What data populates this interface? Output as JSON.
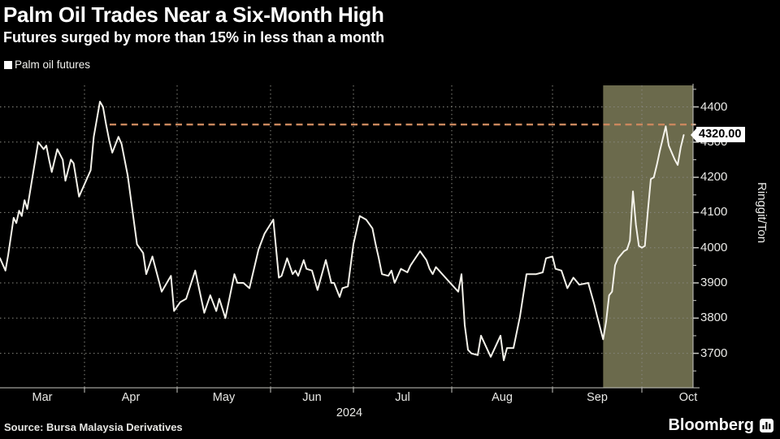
{
  "header": {
    "title": "Palm Oil Trades Near a Six-Month High",
    "subtitle": "Futures surged by more than 15% in less than a month"
  },
  "legend": {
    "series_label": "Palm oil futures",
    "marker_color": "#ffffff"
  },
  "footer": {
    "source": "Source: Bursa Malaysia Derivatives",
    "brand": "Bloomberg"
  },
  "colors": {
    "background": "#000000",
    "line": "#f4f2ea",
    "highlight_band": "#6b6a4c",
    "reference_dash": "#c9875d",
    "grid": "#87877f",
    "axis": "#c7c7c2",
    "text": "#e9e9e6"
  },
  "chart_data": {
    "type": "line",
    "title": "Palm oil futures",
    "xlabel": "",
    "ylabel": "Ringgit/Ton",
    "x_range": [
      "2024-03-01",
      "2024-10-15"
    ],
    "ylim": [
      3620,
      4460
    ],
    "y_ticks": [
      3700,
      3800,
      3900,
      4000,
      4100,
      4200,
      4300,
      4400
    ],
    "y_minor_ticks": [
      3650,
      3750,
      3850,
      3950,
      4050,
      4150,
      4250,
      4350,
      4450
    ],
    "x_tick_labels": [
      "Mar",
      "Apr",
      "May",
      "Jun",
      "Jul",
      "Aug",
      "Sep",
      "Oct"
    ],
    "year_label": "2024",
    "grid": true,
    "legend_position": "top-left",
    "last_price": {
      "value": 4320,
      "label": "4320.00"
    },
    "reference_line": {
      "value": 4350,
      "style": "dashed",
      "color": "#c9875d"
    },
    "highlight_region": {
      "start": "2024-09-18",
      "end": "2024-10-15",
      "color": "#6b6a4c"
    },
    "line_color": "#f4f2ea",
    "series": [
      {
        "name": "Palm oil futures",
        "points": [
          [
            "2024-03-01",
            3970
          ],
          [
            "2024-03-03",
            3935
          ],
          [
            "2024-03-04",
            3980
          ],
          [
            "2024-03-06",
            4085
          ],
          [
            "2024-03-07",
            4070
          ],
          [
            "2024-03-08",
            4105
          ],
          [
            "2024-03-09",
            4090
          ],
          [
            "2024-03-10",
            4135
          ],
          [
            "2024-03-11",
            4110
          ],
          [
            "2024-03-15",
            4300
          ],
          [
            "2024-03-17",
            4280
          ],
          [
            "2024-03-18",
            4290
          ],
          [
            "2024-03-19",
            4250
          ],
          [
            "2024-03-20",
            4215
          ],
          [
            "2024-03-22",
            4280
          ],
          [
            "2024-03-24",
            4250
          ],
          [
            "2024-03-25",
            4190
          ],
          [
            "2024-03-27",
            4250
          ],
          [
            "2024-03-28",
            4240
          ],
          [
            "2024-03-30",
            4145
          ],
          [
            "2024-04-03",
            4220
          ],
          [
            "2024-04-04",
            4315
          ],
          [
            "2024-04-06",
            4415
          ],
          [
            "2024-04-07",
            4400
          ],
          [
            "2024-04-08",
            4350
          ],
          [
            "2024-04-09",
            4305
          ],
          [
            "2024-04-10",
            4270
          ],
          [
            "2024-04-12",
            4315
          ],
          [
            "2024-04-13",
            4295
          ],
          [
            "2024-04-15",
            4205
          ],
          [
            "2024-04-18",
            4010
          ],
          [
            "2024-04-20",
            3985
          ],
          [
            "2024-04-21",
            3925
          ],
          [
            "2024-04-23",
            3975
          ],
          [
            "2024-04-26",
            3875
          ],
          [
            "2024-04-29",
            3920
          ],
          [
            "2024-04-30",
            3820
          ],
          [
            "2024-05-02",
            3845
          ],
          [
            "2024-05-04",
            3855
          ],
          [
            "2024-05-07",
            3935
          ],
          [
            "2024-05-10",
            3815
          ],
          [
            "2024-05-12",
            3865
          ],
          [
            "2024-05-14",
            3820
          ],
          [
            "2024-05-15",
            3855
          ],
          [
            "2024-05-17",
            3800
          ],
          [
            "2024-05-20",
            3925
          ],
          [
            "2024-05-21",
            3900
          ],
          [
            "2024-05-23",
            3900
          ],
          [
            "2024-05-25",
            3885
          ],
          [
            "2024-05-28",
            3995
          ],
          [
            "2024-05-30",
            4040
          ],
          [
            "2024-06-02",
            4080
          ],
          [
            "2024-06-04",
            3915
          ],
          [
            "2024-06-05",
            3920
          ],
          [
            "2024-06-07",
            3970
          ],
          [
            "2024-06-09",
            3925
          ],
          [
            "2024-06-10",
            3935
          ],
          [
            "2024-06-11",
            3920
          ],
          [
            "2024-06-13",
            3965
          ],
          [
            "2024-06-14",
            3940
          ],
          [
            "2024-06-16",
            3935
          ],
          [
            "2024-06-18",
            3880
          ],
          [
            "2024-06-21",
            3965
          ],
          [
            "2024-06-23",
            3900
          ],
          [
            "2024-06-24",
            3900
          ],
          [
            "2024-06-26",
            3860
          ],
          [
            "2024-06-27",
            3885
          ],
          [
            "2024-06-29",
            3890
          ],
          [
            "2024-07-01",
            4010
          ],
          [
            "2024-07-03",
            4090
          ],
          [
            "2024-07-05",
            4080
          ],
          [
            "2024-07-07",
            4055
          ],
          [
            "2024-07-08",
            4010
          ],
          [
            "2024-07-09",
            3970
          ],
          [
            "2024-07-10",
            3925
          ],
          [
            "2024-07-12",
            3920
          ],
          [
            "2024-07-13",
            3935
          ],
          [
            "2024-07-14",
            3900
          ],
          [
            "2024-07-16",
            3940
          ],
          [
            "2024-07-18",
            3930
          ],
          [
            "2024-07-19",
            3950
          ],
          [
            "2024-07-22",
            3990
          ],
          [
            "2024-07-24",
            3965
          ],
          [
            "2024-07-25",
            3940
          ],
          [
            "2024-07-26",
            3925
          ],
          [
            "2024-07-27",
            3945
          ],
          [
            "2024-07-28",
            3935
          ],
          [
            "2024-07-30",
            3915
          ],
          [
            "2024-08-03",
            3875
          ],
          [
            "2024-08-04",
            3925
          ],
          [
            "2024-08-05",
            3780
          ],
          [
            "2024-08-06",
            3710
          ],
          [
            "2024-08-07",
            3700
          ],
          [
            "2024-08-09",
            3695
          ],
          [
            "2024-08-10",
            3750
          ],
          [
            "2024-08-12",
            3710
          ],
          [
            "2024-08-13",
            3690
          ],
          [
            "2024-08-16",
            3750
          ],
          [
            "2024-08-17",
            3680
          ],
          [
            "2024-08-18",
            3715
          ],
          [
            "2024-08-20",
            3715
          ],
          [
            "2024-08-22",
            3805
          ],
          [
            "2024-08-23",
            3865
          ],
          [
            "2024-08-24",
            3925
          ],
          [
            "2024-08-25",
            3925
          ],
          [
            "2024-08-27",
            3925
          ],
          [
            "2024-08-29",
            3930
          ],
          [
            "2024-08-30",
            3970
          ],
          [
            "2024-09-01",
            3975
          ],
          [
            "2024-09-02",
            3940
          ],
          [
            "2024-09-04",
            3935
          ],
          [
            "2024-09-06",
            3885
          ],
          [
            "2024-09-08",
            3915
          ],
          [
            "2024-09-10",
            3895
          ],
          [
            "2024-09-13",
            3900
          ],
          [
            "2024-09-15",
            3840
          ],
          [
            "2024-09-16",
            3805
          ],
          [
            "2024-09-18",
            3740
          ],
          [
            "2024-09-19",
            3790
          ],
          [
            "2024-09-20",
            3865
          ],
          [
            "2024-09-21",
            3875
          ],
          [
            "2024-09-22",
            3950
          ],
          [
            "2024-09-23",
            3970
          ],
          [
            "2024-09-25",
            3990
          ],
          [
            "2024-09-26",
            3995
          ],
          [
            "2024-09-27",
            4020
          ],
          [
            "2024-09-28",
            4160
          ],
          [
            "2024-09-29",
            4065
          ],
          [
            "2024-09-30",
            4005
          ],
          [
            "2024-10-01",
            4000
          ],
          [
            "2024-10-02",
            4005
          ],
          [
            "2024-10-03",
            4105
          ],
          [
            "2024-10-04",
            4195
          ],
          [
            "2024-10-05",
            4200
          ],
          [
            "2024-10-06",
            4235
          ],
          [
            "2024-10-07",
            4275
          ],
          [
            "2024-10-09",
            4345
          ],
          [
            "2024-10-10",
            4290
          ],
          [
            "2024-10-11",
            4270
          ],
          [
            "2024-10-12",
            4250
          ],
          [
            "2024-10-13",
            4235
          ],
          [
            "2024-10-14",
            4285
          ],
          [
            "2024-10-15",
            4320
          ]
        ]
      }
    ]
  }
}
